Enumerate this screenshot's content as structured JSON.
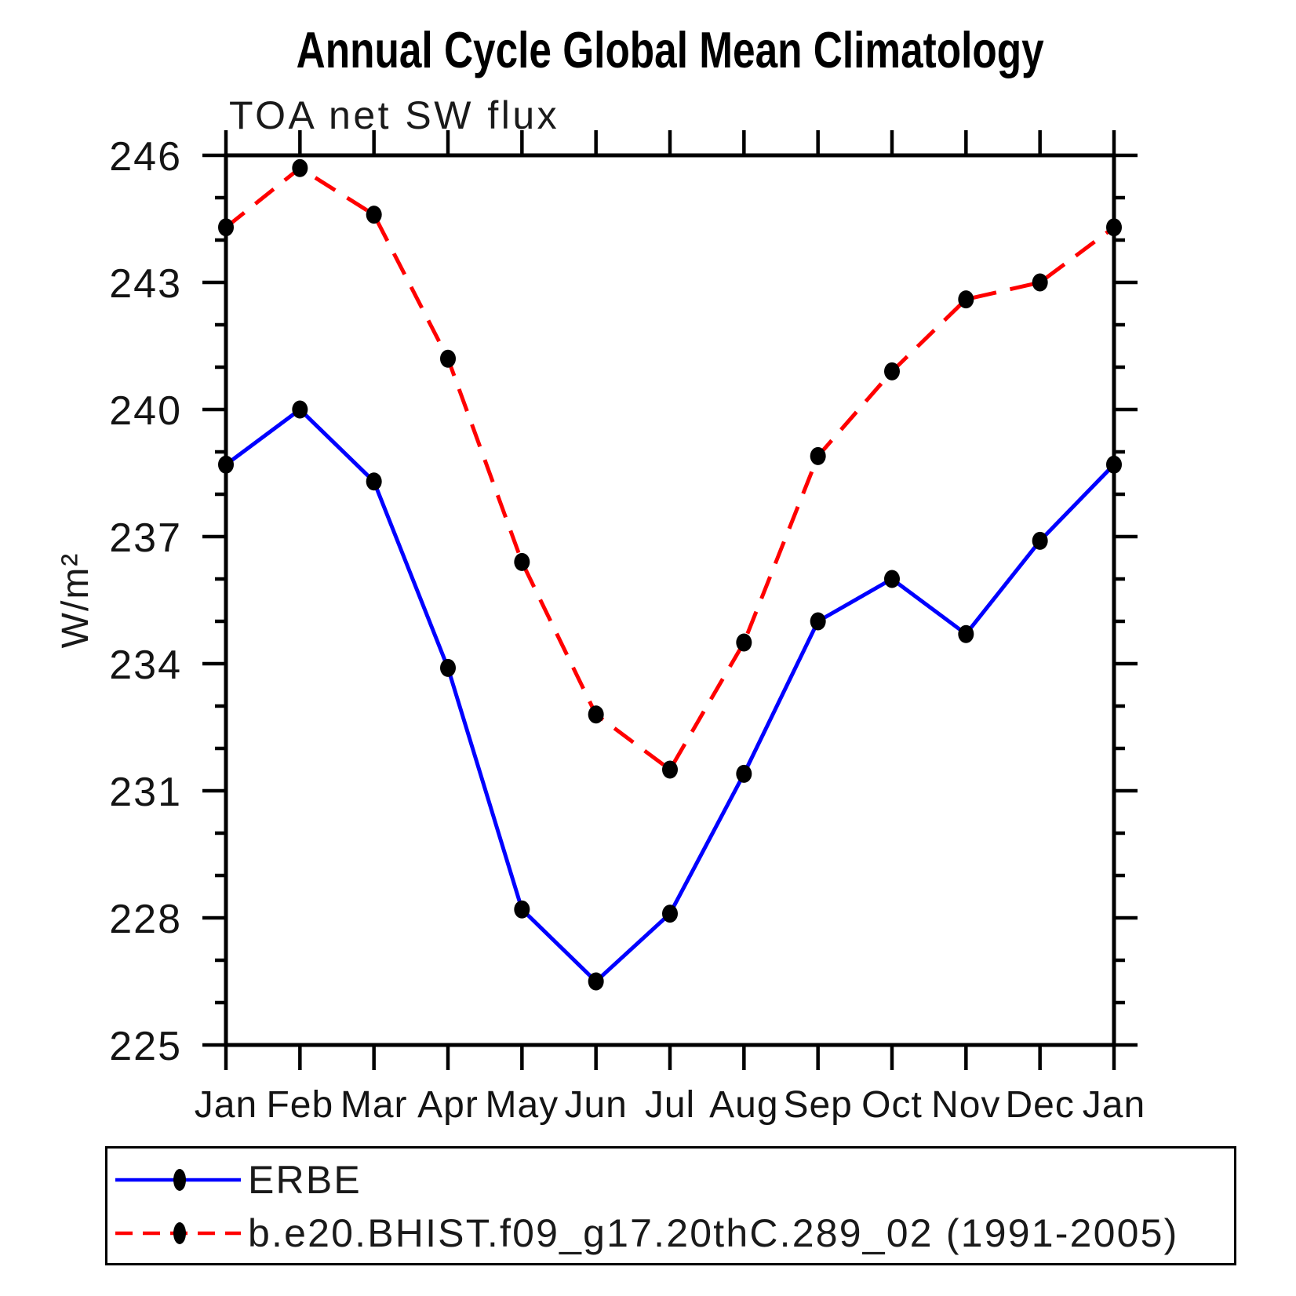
{
  "page": {
    "title": "Annual Cycle Global Mean Climatology"
  },
  "chart_data": {
    "type": "line",
    "title": "TOA net SW flux",
    "xlabel": "",
    "ylabel": "W/m²",
    "categories": [
      "Jan",
      "Feb",
      "Mar",
      "Apr",
      "May",
      "Jun",
      "Jul",
      "Aug",
      "Sep",
      "Oct",
      "Nov",
      "Dec",
      "Jan"
    ],
    "y_axis": {
      "min": 225,
      "max": 246,
      "major_tick_step": 3,
      "minor_tick_step": 1,
      "major_tick_labels": [
        "225",
        "228",
        "231",
        "234",
        "237",
        "240",
        "243",
        "246"
      ]
    },
    "grid": false,
    "legend_position": "bottom",
    "series": [
      {
        "name": "ERBE",
        "color": "#0000ff",
        "line_style": "solid",
        "marker": "filled-circle",
        "marker_color": "#000000",
        "values": [
          238.7,
          240.0,
          238.3,
          233.9,
          228.2,
          226.5,
          228.1,
          231.4,
          235.0,
          236.0,
          234.7,
          236.9,
          238.7
        ]
      },
      {
        "name": "b.e20.BHIST.f09_g17.20thC.289_02 (1991-2005)",
        "color": "#ff0000",
        "line_style": "dashed",
        "marker": "filled-circle",
        "marker_color": "#000000",
        "values": [
          244.3,
          245.7,
          244.6,
          241.2,
          236.4,
          232.8,
          231.5,
          234.5,
          238.9,
          240.9,
          242.6,
          243.0,
          244.3
        ]
      }
    ]
  }
}
